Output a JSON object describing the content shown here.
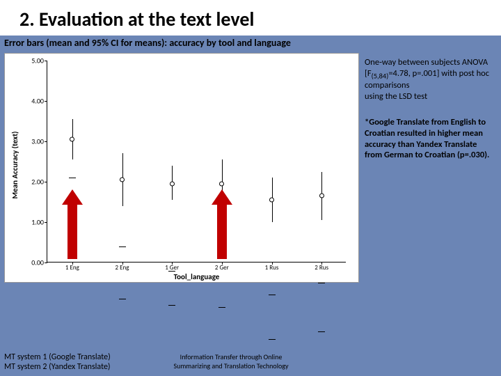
{
  "title": "2. Evaluation at the text level",
  "subtitle": "Error bars (mean and 95% CI for means): accuracy by tool and language",
  "chart": {
    "type": "errorbar",
    "ylabel": "Mean Accuracy (text)",
    "xlabel": "Tool_language",
    "ylim": [
      0,
      5
    ],
    "ytick_step": 1,
    "yticks": [
      "5.00",
      "4.00",
      "3.00",
      "2.00",
      "1.00",
      "0.00"
    ],
    "background_color": "#ffffff",
    "categories": [
      "1 Eng",
      "2 Eng",
      "1 Ger",
      "2 Ger",
      "1 Rus",
      "2 Rus"
    ],
    "series": [
      {
        "mean": 3.05,
        "lo": 2.55,
        "hi": 3.55
      },
      {
        "mean": 2.05,
        "lo": 1.4,
        "hi": 2.7
      },
      {
        "mean": 1.95,
        "lo": 1.55,
        "hi": 2.4
      },
      {
        "mean": 1.95,
        "lo": 1.35,
        "hi": 2.55
      },
      {
        "mean": 1.55,
        "lo": 1.0,
        "hi": 2.1
      },
      {
        "mean": 1.65,
        "lo": 1.05,
        "hi": 2.25
      }
    ],
    "arrow_color": "#c00000",
    "arrows_on": [
      0,
      3
    ]
  },
  "side": {
    "p1_a": "One-way between subjects ANOVA",
    "p1_b": "[F",
    "p1_sub": "(5,84)",
    "p1_c": "=4.78, p=.001] with post hoc comparisons",
    "p1_d": "using the LSD test",
    "p2": "*Google Translate from English to Croatian resulted in higher mean accuracy than Yandex Translate from German to Croatian (p=.030)."
  },
  "footer": {
    "left1": "MT system 1 (Google Translate)",
    "left2": "MT system 2 (Yandex Translate)",
    "center": "Information Transfer through Online Summarizing and Translation Technology"
  }
}
